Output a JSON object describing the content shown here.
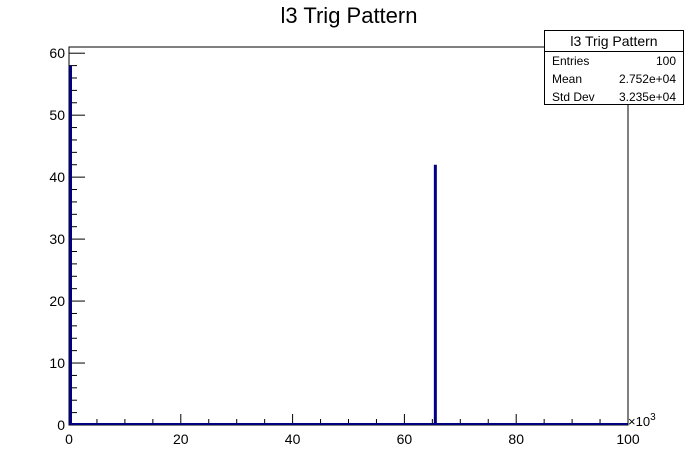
{
  "chart_data": {
    "type": "bar",
    "title": "l3 Trig Pattern",
    "xlim": [
      0,
      100000
    ],
    "ylim": [
      0,
      61
    ],
    "x_tick_labels": [
      "0",
      "20",
      "40",
      "60",
      "80",
      "100"
    ],
    "x_ticks": [
      0,
      20000,
      40000,
      60000,
      80000,
      100000
    ],
    "x_multiplier_label": "×10",
    "x_multiplier_exp": "3",
    "y_ticks": [
      0,
      10,
      20,
      30,
      40,
      50,
      60
    ],
    "y_tick_labels": [
      "0",
      "10",
      "20",
      "30",
      "40",
      "50",
      "60"
    ],
    "bins": [
      {
        "x": 0,
        "value": 58
      },
      {
        "x": 65536,
        "value": 42
      }
    ],
    "line_color": "#000080",
    "grid": false
  },
  "stats": {
    "title": "l3 Trig Pattern",
    "entries_label": "Entries",
    "entries_value": "100",
    "mean_label": "Mean",
    "mean_value": "2.752e+04",
    "stddev_label": "Std Dev",
    "stddev_value": "3.235e+04"
  }
}
